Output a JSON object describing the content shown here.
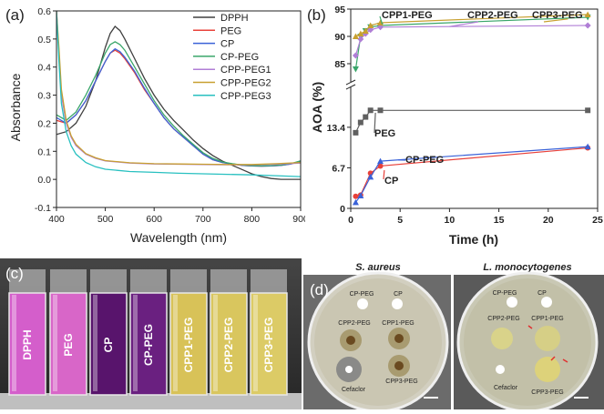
{
  "panels": {
    "a": {
      "label": "(a)"
    },
    "b": {
      "label": "(b)"
    },
    "c": {
      "label": "(c)",
      "vial_labels": [
        "DPPH",
        "PEG",
        "CP",
        "CP-PEG",
        "CPP1-PEG",
        "CPP2-PEG",
        "CPP3-PEG"
      ]
    },
    "d": {
      "label": "(d)",
      "scale_bar": "",
      "plates": [
        {
          "organism": "S. aureus",
          "wells": [
            "CP-PEG",
            "CP",
            "CPP2-PEG",
            "CPP1-PEG",
            "CPP3-PEG",
            "Cefaclor"
          ]
        },
        {
          "organism": "L. monocytogenes",
          "wells": [
            "CP-PEG",
            "CP",
            "CPP2-PEG",
            "CPP1-PEG",
            "CPP3-PEG",
            "Cefaclor"
          ]
        }
      ]
    }
  },
  "chart_data": [
    {
      "type": "line",
      "panel": "a",
      "xlabel": "Wavelength (nm)",
      "ylabel": "Absorbance",
      "xlim": [
        400,
        900
      ],
      "ylim": [
        -0.1,
        0.6
      ],
      "xticks": [
        400,
        500,
        600,
        700,
        800,
        900
      ],
      "yticks": [
        -0.1,
        0.0,
        0.1,
        0.2,
        0.3,
        0.4,
        0.5,
        0.6
      ],
      "series": [
        {
          "name": "DPPH",
          "color": "#404040",
          "x": [
            400,
            420,
            440,
            460,
            480,
            500,
            510,
            520,
            530,
            540,
            560,
            580,
            600,
            620,
            640,
            660,
            680,
            700,
            720,
            740,
            760,
            780,
            800,
            820,
            840,
            860,
            880,
            900
          ],
          "y": [
            0.16,
            0.17,
            0.2,
            0.26,
            0.35,
            0.47,
            0.52,
            0.545,
            0.53,
            0.5,
            0.43,
            0.36,
            0.3,
            0.25,
            0.21,
            0.175,
            0.14,
            0.11,
            0.085,
            0.065,
            0.05,
            0.035,
            0.02,
            0.01,
            0.003,
            0.0,
            0.0,
            0.0
          ]
        },
        {
          "name": "PEG",
          "color": "#e8413a",
          "x": [
            400,
            420,
            440,
            460,
            480,
            500,
            510,
            520,
            530,
            540,
            560,
            580,
            600,
            620,
            640,
            660,
            680,
            700,
            720,
            740,
            760,
            780,
            800,
            820,
            840,
            860,
            880,
            900
          ],
          "y": [
            0.21,
            0.2,
            0.23,
            0.28,
            0.35,
            0.42,
            0.45,
            0.46,
            0.45,
            0.43,
            0.38,
            0.32,
            0.27,
            0.22,
            0.18,
            0.15,
            0.12,
            0.09,
            0.07,
            0.06,
            0.055,
            0.05,
            0.048,
            0.047,
            0.048,
            0.05,
            0.055,
            0.065
          ]
        },
        {
          "name": "CP",
          "color": "#3a62d8",
          "x": [
            400,
            420,
            440,
            460,
            480,
            500,
            510,
            520,
            530,
            540,
            560,
            580,
            600,
            620,
            640,
            660,
            680,
            700,
            720,
            740,
            760,
            780,
            800,
            820,
            840,
            860,
            880,
            900
          ],
          "y": [
            0.22,
            0.2,
            0.23,
            0.28,
            0.35,
            0.42,
            0.45,
            0.465,
            0.455,
            0.435,
            0.385,
            0.325,
            0.27,
            0.22,
            0.18,
            0.15,
            0.12,
            0.09,
            0.07,
            0.06,
            0.055,
            0.05,
            0.048,
            0.047,
            0.048,
            0.05,
            0.055,
            0.065
          ]
        },
        {
          "name": "CP-PEG",
          "color": "#3aa66a",
          "x": [
            400,
            420,
            440,
            460,
            480,
            500,
            510,
            520,
            530,
            540,
            560,
            580,
            600,
            620,
            640,
            660,
            680,
            700,
            720,
            740,
            760,
            780,
            800,
            820,
            840,
            860,
            880,
            900
          ],
          "y": [
            0.23,
            0.21,
            0.24,
            0.3,
            0.37,
            0.45,
            0.48,
            0.49,
            0.48,
            0.46,
            0.4,
            0.34,
            0.28,
            0.23,
            0.19,
            0.155,
            0.125,
            0.095,
            0.075,
            0.062,
            0.056,
            0.051,
            0.049,
            0.048,
            0.049,
            0.051,
            0.056,
            0.066
          ]
        },
        {
          "name": "CPP-PEG1",
          "color": "#b07ed6",
          "x": [
            400,
            405,
            410,
            420,
            430,
            440,
            460,
            480,
            500,
            550,
            600,
            650,
            700,
            750,
            800,
            850,
            900
          ],
          "y": [
            0.6,
            0.45,
            0.3,
            0.2,
            0.15,
            0.12,
            0.09,
            0.075,
            0.066,
            0.058,
            0.055,
            0.054,
            0.053,
            0.052,
            0.052,
            0.054,
            0.058
          ]
        },
        {
          "name": "CPP-PEG2",
          "color": "#c8a030",
          "x": [
            400,
            405,
            410,
            420,
            430,
            440,
            460,
            480,
            500,
            550,
            600,
            650,
            700,
            750,
            800,
            850,
            900
          ],
          "y": [
            0.6,
            0.47,
            0.32,
            0.21,
            0.155,
            0.125,
            0.092,
            0.077,
            0.067,
            0.059,
            0.056,
            0.055,
            0.054,
            0.053,
            0.053,
            0.056,
            0.06
          ]
        },
        {
          "name": "CPP-PEG3",
          "color": "#28c0c0",
          "x": [
            400,
            405,
            410,
            420,
            430,
            440,
            460,
            480,
            500,
            550,
            600,
            650,
            700,
            750,
            800,
            850,
            900
          ],
          "y": [
            0.6,
            0.42,
            0.27,
            0.17,
            0.12,
            0.09,
            0.06,
            0.045,
            0.036,
            0.028,
            0.025,
            0.022,
            0.02,
            0.018,
            0.016,
            0.013,
            0.01
          ]
        }
      ]
    },
    {
      "type": "line",
      "panel": "b",
      "xlabel": "Time (h)",
      "ylabel": "AOA (%)",
      "xlim": [
        0,
        25
      ],
      "xticks": [
        0,
        5,
        10,
        15,
        20,
        25
      ],
      "yticks_upper": [
        85,
        90,
        95
      ],
      "yticks_lower": [
        0,
        6.7,
        13.4
      ],
      "series": [
        {
          "name": "PEG",
          "color": "#606060",
          "x": [
            0.5,
            1,
            1.5,
            2,
            3,
            24
          ],
          "y": [
            12.5,
            14.2,
            15.1,
            16.2,
            16.2,
            16.2
          ]
        },
        {
          "name": "CP",
          "color": "#e8413a",
          "x": [
            0.5,
            1,
            2,
            3,
            24
          ],
          "y": [
            2.0,
            2.2,
            5.8,
            7.0,
            10.0
          ]
        },
        {
          "name": "CP-PEG",
          "color": "#3a62d8",
          "x": [
            0.5,
            1,
            2,
            3,
            24
          ],
          "y": [
            1.0,
            2.1,
            5.2,
            7.8,
            10.2
          ]
        },
        {
          "name": "CPP1-PEG",
          "color": "#3aa66a",
          "x": [
            0.5,
            1,
            1.5,
            2,
            3,
            24
          ],
          "y": [
            84.0,
            90.0,
            91.0,
            91.7,
            92.0,
            93.5
          ]
        },
        {
          "name": "CPP2-PEG",
          "color": "#b07ed6",
          "x": [
            0.5,
            1,
            1.5,
            2,
            3,
            24
          ],
          "y": [
            86.5,
            89.5,
            90.5,
            91.2,
            91.7,
            92.0
          ]
        },
        {
          "name": "CPP3-PEG",
          "color": "#c8a030",
          "x": [
            0.5,
            1,
            1.5,
            2,
            3,
            24
          ],
          "y": [
            90.0,
            90.5,
            91.0,
            92.0,
            92.5,
            94.0
          ]
        }
      ],
      "annotations": [
        "CPP1-PEG",
        "CPP2-PEG",
        "CPP3-PEG",
        "PEG",
        "CP-PEG",
        "CP"
      ]
    }
  ]
}
